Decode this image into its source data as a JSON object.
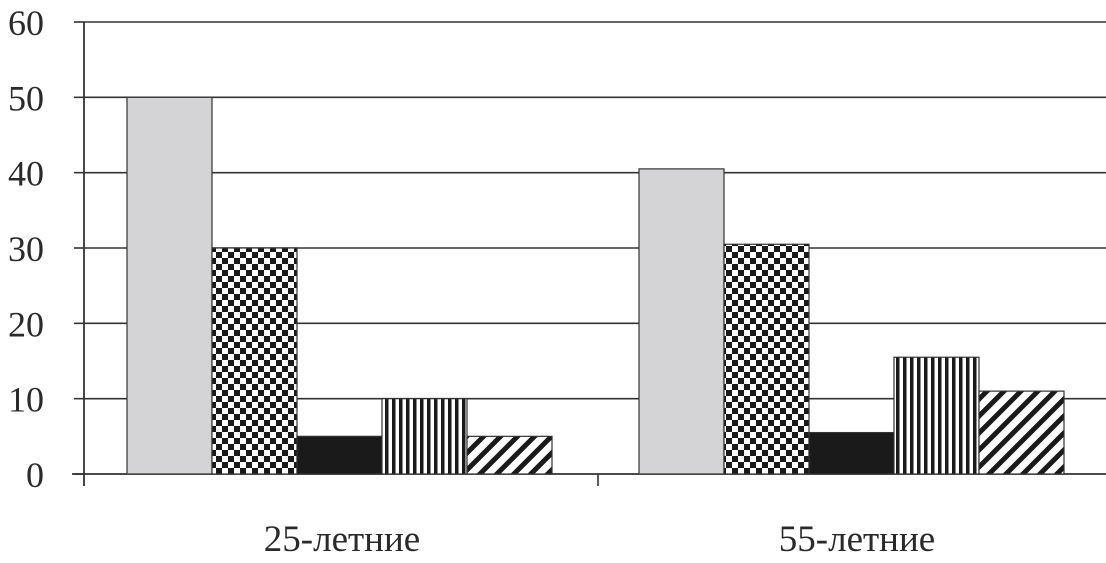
{
  "chart_data": {
    "type": "bar",
    "title": "",
    "xlabel": "",
    "ylabel": "",
    "ylim": [
      0,
      60
    ],
    "yticks": [
      0,
      10,
      20,
      30,
      40,
      50,
      60
    ],
    "grid": true,
    "legend": "none",
    "categories": [
      "25-летние",
      "55-летние"
    ],
    "series": [
      {
        "values": [
          50,
          40.5
        ],
        "fill": "light-gray"
      },
      {
        "values": [
          30,
          30.5
        ],
        "fill": "checkerboard"
      },
      {
        "values": [
          5,
          5.5
        ],
        "fill": "solid-black"
      },
      {
        "values": [
          10,
          15.5
        ],
        "fill": "vertical-stripes"
      },
      {
        "values": [
          5,
          11
        ],
        "fill": "diagonal-stripes"
      }
    ]
  },
  "colors": {
    "background": "#ffffff",
    "ink": "#2a2a2a",
    "gridline": "#333333",
    "light_gray_bar": "#d4d4d6",
    "black": "#1a1a1a"
  }
}
